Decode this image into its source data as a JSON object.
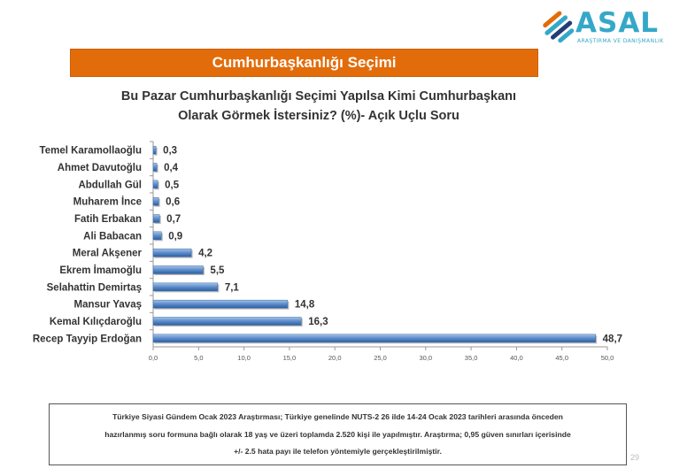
{
  "logo": {
    "word": "ASAL",
    "tagline": "ARAŞTIRMA VE DANIŞMANLIK",
    "icon": "asal-logo-icon",
    "colors": [
      "#e36c0a",
      "#35a8c8",
      "#243b73"
    ]
  },
  "banner": {
    "title": "Cumhurbaşkanlığı Seçimi",
    "color": "#e36c0a"
  },
  "question": {
    "line1": "Bu Pazar Cumhurbaşkanlığı Seçimi Yapılsa Kimi Cumhurbaşkanı",
    "line2": "Olarak Görmek İstersiniz? (%)- Açık Uçlu Soru"
  },
  "chart_data": {
    "type": "bar",
    "orientation": "horizontal",
    "categories": [
      "Temel Karamollaoğlu",
      "Ahmet Davutoğlu",
      "Abdullah Gül",
      "Muharem İnce",
      "Fatih Erbakan",
      "Ali Babacan",
      "Meral Akşener",
      "Ekrem İmamoğlu",
      "Selahattin Demirtaş",
      "Mansur Yavaş",
      "Kemal Kılıçdaroğlu",
      "Recep Tayyip Erdoğan"
    ],
    "values": [
      0.3,
      0.4,
      0.5,
      0.6,
      0.7,
      0.9,
      4.2,
      5.5,
      7.1,
      14.8,
      16.3,
      48.7
    ],
    "value_labels": [
      "0,3",
      "0,4",
      "0,5",
      "0,6",
      "0,7",
      "0,9",
      "4,2",
      "5,5",
      "7,1",
      "14,8",
      "16,3",
      "48,7"
    ],
    "xlim": [
      0,
      50
    ],
    "xticks": [
      "0,0",
      "5,0",
      "10,0",
      "15,0",
      "20,0",
      "25,0",
      "30,0",
      "35,0",
      "40,0",
      "45,0",
      "50,0"
    ],
    "grid": false,
    "bar_color": "#4f81bd"
  },
  "note": {
    "line1": "Türkiye Siyasi Gündem Ocak 2023 Araştırması; Türkiye genelinde NUTS-2 26 ilde 14-24 Ocak 2023 tarihleri arasında önceden",
    "line2": "hazırlanmış soru formuna bağlı olarak 18 yaş ve üzeri toplamda 2.520 kişi ile yapılmıştır. Araştırma; 0,95 güven sınırları içerisinde",
    "line3": "+/- 2.5 hata payı ile telefon yöntemiyle gerçekleştirilmiştir."
  },
  "page_number": "29"
}
